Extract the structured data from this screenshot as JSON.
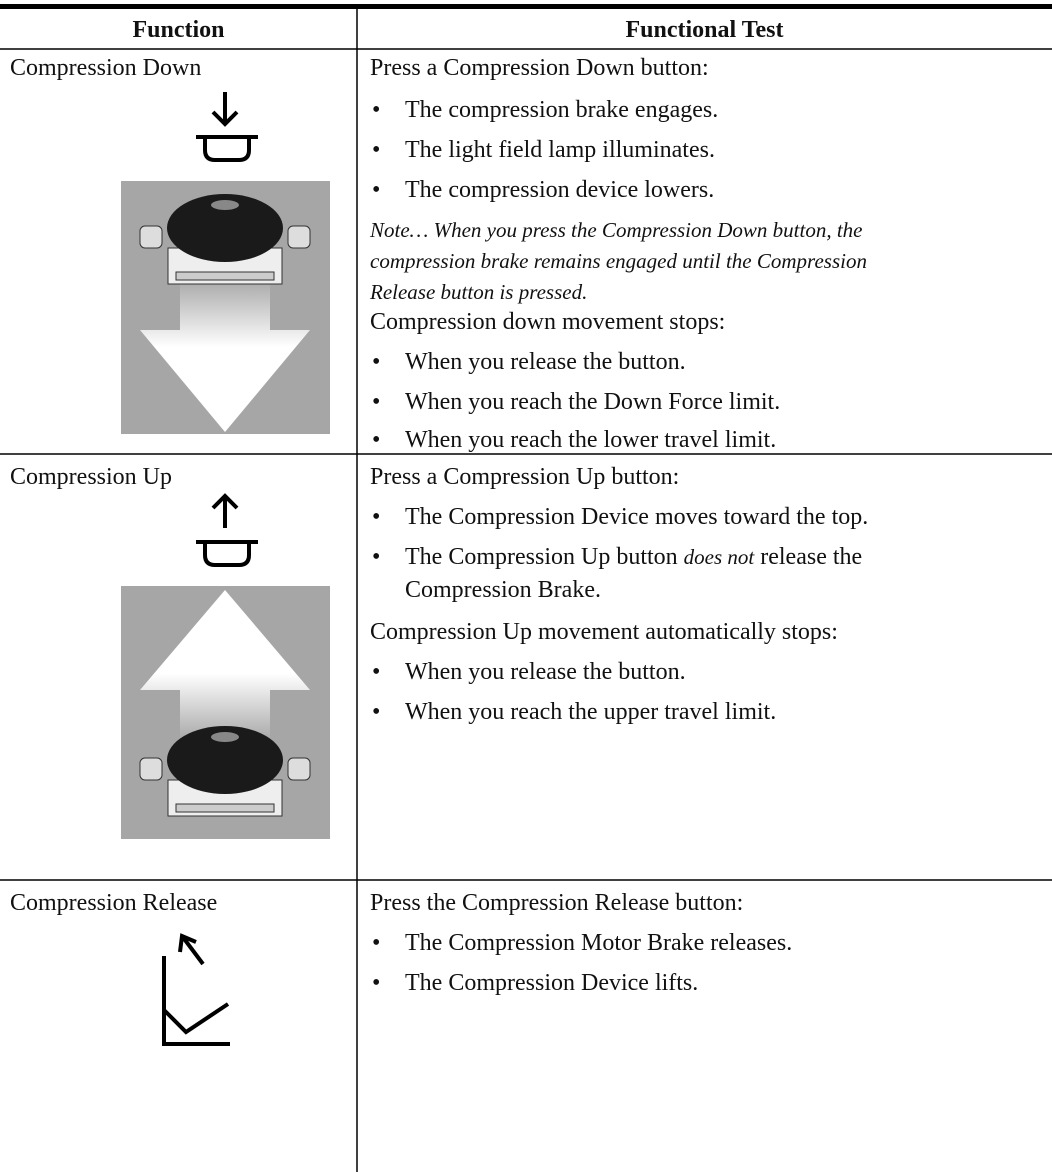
{
  "table": {
    "header": [
      "Function",
      "Functional Test"
    ],
    "rows": [
      {
        "function": "Compression Down",
        "lead": "Press a Compression Down button:",
        "steps": [
          "The compression brake engages.",
          "The light field lamp illuminates.",
          "The compression device lowers."
        ],
        "note": [
          "Note… When you press the Compression Down button, the",
          "compression brake remains engaged until the Compression",
          "Release button is pressed."
        ],
        "stop_lead": "Compression down movement stops:",
        "stop_steps": [
          "When you release the button.",
          "When you reach the Down Force limit.",
          "When you reach the lower travel limit."
        ]
      },
      {
        "function": "Compression Up",
        "lead": "Press a Compression Up button:",
        "steps": [
          "The Compression Device moves toward the top."
        ],
        "step_emphasis": {
          "before": "The Compression Up button ",
          "emphasis": "does not",
          "after": " release the",
          "continued": "Compression Brake."
        },
        "stop_lead": "Compression Up movement automatically stops:",
        "stop_steps": [
          "When you release the button.",
          "When you reach the upper travel limit."
        ]
      },
      {
        "function": "Compression Release",
        "lead": "Press the Compression Release button:",
        "steps": [
          "The Compression Motor Brake releases.",
          "The Compression Device lifts."
        ]
      }
    ]
  }
}
